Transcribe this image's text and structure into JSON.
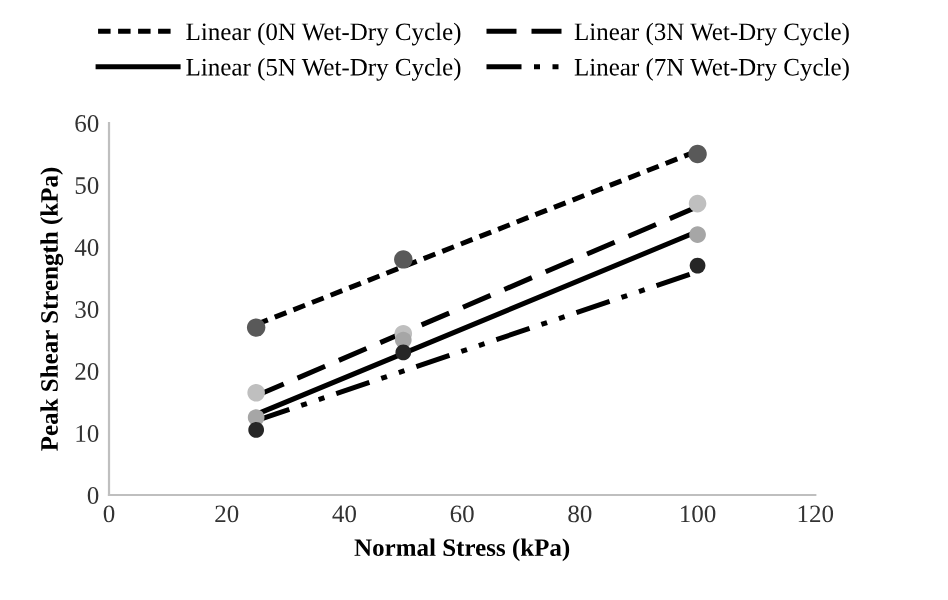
{
  "chart_data": {
    "type": "scatter",
    "xlabel": "Normal Stress (kPa)",
    "ylabel": "Peak Shear Strength (kPa)",
    "xlim": [
      0,
      120
    ],
    "xticks": [
      0,
      20,
      40,
      60,
      80,
      100,
      120
    ],
    "ylim": [
      0,
      60
    ],
    "yticks": [
      0,
      10,
      20,
      30,
      40,
      50,
      60
    ],
    "grid": false,
    "legend": "top",
    "marker": "circle",
    "series": [
      {
        "color": "#595959",
        "x": [
          25,
          50,
          100
        ],
        "values": [
          27,
          38,
          55
        ]
      },
      {
        "color": "#bfbfbf",
        "x": [
          25,
          50,
          100
        ],
        "values": [
          16.5,
          26,
          47
        ]
      },
      {
        "color": "#a6a6a6",
        "x": [
          25,
          50,
          100
        ],
        "values": [
          12.5,
          25,
          42
        ]
      },
      {
        "color": "#262626",
        "x": [
          25,
          50,
          100
        ],
        "values": [
          10.5,
          23,
          37
        ]
      },
      {
        "type": "line",
        "name": "Linear (0N Wet-Dry Cycle)",
        "color": "#000000",
        "line_style": "dotted",
        "marker": "none",
        "x": [
          25,
          100
        ],
        "values": [
          27.5,
          55.5
        ]
      },
      {
        "type": "line",
        "name": "Linear (3N Wet-Dry Cycle)",
        "color": "#000000",
        "line_style": "dashed",
        "marker": "none",
        "x": [
          25,
          100
        ],
        "values": [
          16,
          46.5
        ]
      },
      {
        "type": "line",
        "name": "Linear (5N Wet-Dry Cycle)",
        "color": "#000000",
        "line_style": "solid",
        "marker": "none",
        "x": [
          25,
          100
        ],
        "values": [
          13,
          42.5
        ]
      },
      {
        "type": "line",
        "name": "Linear (7N Wet-Dry Cycle)",
        "color": "#000000",
        "line_style": "dashdot",
        "marker": "none",
        "x": [
          25,
          100
        ],
        "values": [
          12,
          36
        ]
      }
    ]
  }
}
